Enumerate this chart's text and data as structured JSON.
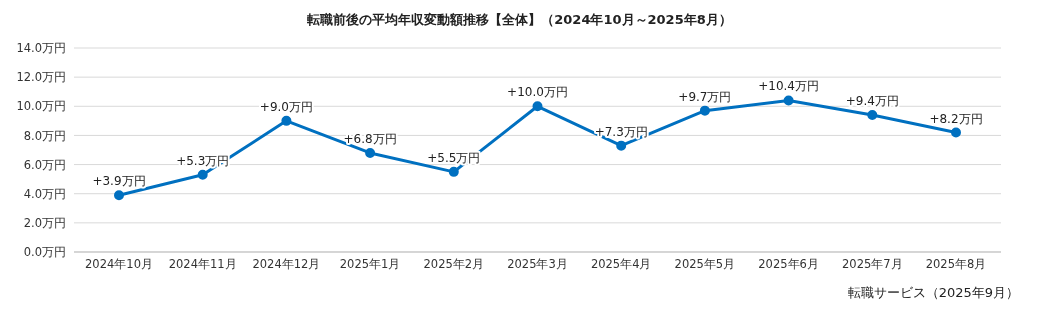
{
  "chart_data": {
    "type": "line",
    "title": "転職前後の平均年収変動額推移【全体】（2024年10月～2025年8月）",
    "categories": [
      "2024年10月",
      "2024年11月",
      "2024年12月",
      "2025年1月",
      "2025年2月",
      "2025年3月",
      "2025年4月",
      "2025年5月",
      "2025年6月",
      "2025年7月",
      "2025年8月"
    ],
    "series": [
      {
        "color": "#0070c0",
        "values": [
          3.9,
          5.3,
          9.0,
          6.8,
          5.5,
          10.0,
          7.3,
          9.7,
          10.4,
          9.4,
          8.2
        ],
        "value_labels": [
          "+3.9万円",
          "+5.3万円",
          "+9.0万円",
          "+6.8万円",
          "+5.5万円",
          "+10.0万円",
          "+7.3万円",
          "+9.7万円",
          "+10.4万円",
          "+9.4万円",
          "+8.2万円"
        ]
      }
    ],
    "ylim": [
      0,
      14
    ],
    "yticks": [
      {
        "value": 0,
        "label": "0.0万円"
      },
      {
        "value": 2,
        "label": "2.0万円"
      },
      {
        "value": 4,
        "label": "4.0万円"
      },
      {
        "value": 6,
        "label": "6.0万円"
      },
      {
        "value": 8,
        "label": "8.0万円"
      },
      {
        "value": 10,
        "label": "10.0万円"
      },
      {
        "value": 12,
        "label": "12.0万円"
      },
      {
        "value": 14,
        "label": "14.0万円"
      }
    ],
    "grid": "y",
    "marker": "circle",
    "line_style": "solid",
    "annotations": [
      "転職サービス（2025年9月）"
    ]
  }
}
